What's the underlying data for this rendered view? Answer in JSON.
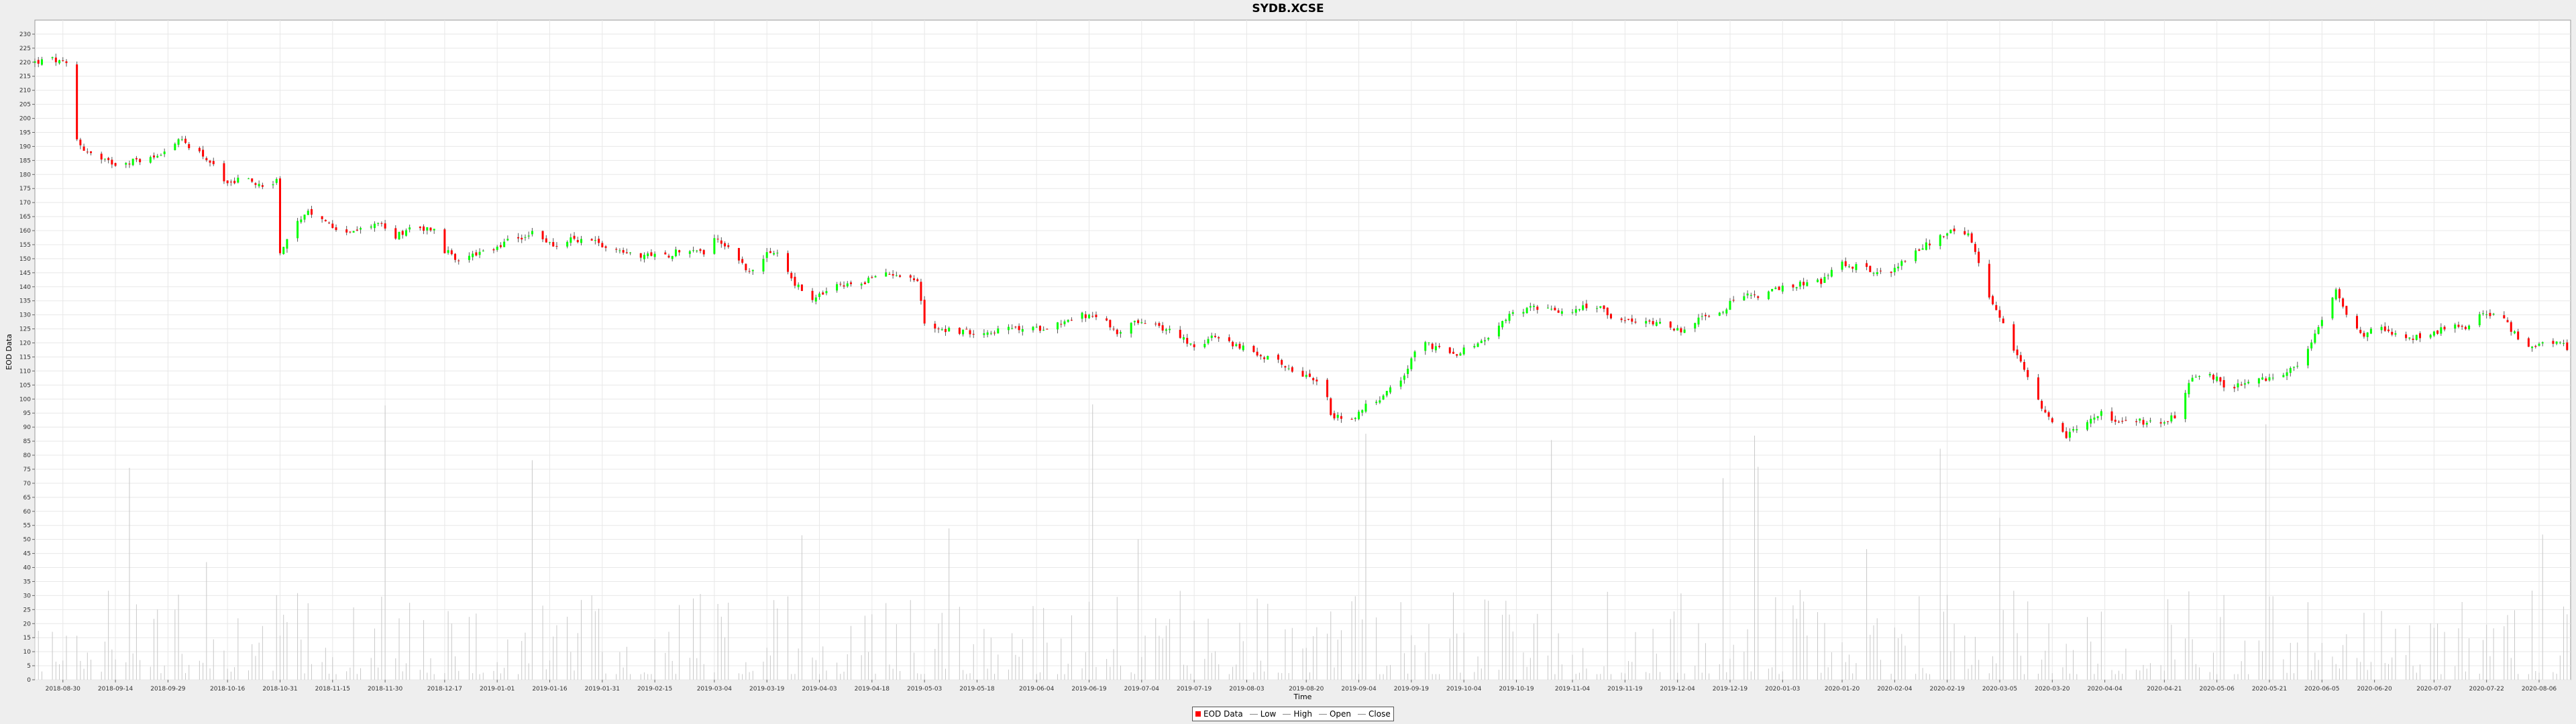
{
  "window": {
    "title": "SYDB.XCSE"
  },
  "colors": {
    "up": "#00ff00",
    "down": "#ff0000",
    "wick": "#555555",
    "volume": "#c8c8c8",
    "grid": "#e8e8e8",
    "plot_bg": "#ffffff"
  },
  "chart_data": {
    "type": "candlestick",
    "title": "SYDB.XCSE",
    "xlabel": "Time",
    "ylabel": "EOD Data",
    "ylim": [
      0,
      235
    ],
    "yticks": [
      0,
      5,
      10,
      15,
      20,
      25,
      30,
      35,
      40,
      45,
      50,
      55,
      60,
      65,
      70,
      75,
      80,
      85,
      90,
      95,
      100,
      105,
      110,
      115,
      120,
      125,
      130,
      135,
      140,
      145,
      150,
      155,
      160,
      165,
      170,
      175,
      180,
      185,
      190,
      195,
      200,
      205,
      210,
      215,
      220,
      225,
      230
    ],
    "xlim": [
      "2018-08-22",
      "2020-08-15"
    ],
    "xticks": [
      "2018-08-30",
      "2018-09-14",
      "2018-09-29",
      "2018-10-16",
      "2018-10-31",
      "2018-11-15",
      "2018-11-30",
      "2018-12-17",
      "2019-01-01",
      "2019-01-16",
      "2019-01-31",
      "2019-02-15",
      "2019-03-04",
      "2019-03-19",
      "2019-04-03",
      "2019-04-18",
      "2019-05-03",
      "2019-05-18",
      "2019-06-04",
      "2019-06-19",
      "2019-07-04",
      "2019-07-19",
      "2019-08-03",
      "2019-08-20",
      "2019-09-04",
      "2019-09-19",
      "2019-10-04",
      "2019-10-19",
      "2019-11-04",
      "2019-11-19",
      "2019-12-04",
      "2019-12-19",
      "2020-01-03",
      "2020-01-20",
      "2020-02-04",
      "2020-02-19",
      "2020-03-05",
      "2020-03-20",
      "2020-04-04",
      "2020-04-21",
      "2020-05-06",
      "2020-05-21",
      "2020-06-05",
      "2020-06-20",
      "2020-07-07",
      "2020-07-22",
      "2020-08-06"
    ],
    "legend_position": "bottom",
    "grid": true,
    "legend": [
      {
        "label": "EOD Data",
        "type": "swatch",
        "color": "#ff0000"
      },
      {
        "label": "Low",
        "type": "line"
      },
      {
        "label": "High",
        "type": "line"
      },
      {
        "label": "Open",
        "type": "line"
      },
      {
        "label": "Close",
        "type": "line"
      }
    ],
    "close_path": [
      [
        "2018-08-22",
        220
      ],
      [
        "2018-08-27",
        221
      ],
      [
        "2018-08-31",
        219
      ],
      [
        "2018-09-02",
        194
      ],
      [
        "2018-09-05",
        189
      ],
      [
        "2018-09-10",
        185
      ],
      [
        "2018-09-14",
        184
      ],
      [
        "2018-09-20",
        185
      ],
      [
        "2018-09-25",
        186
      ],
      [
        "2018-09-29",
        190
      ],
      [
        "2018-10-03",
        192
      ],
      [
        "2018-10-08",
        188
      ],
      [
        "2018-10-13",
        182
      ],
      [
        "2018-10-16",
        176
      ],
      [
        "2018-10-20",
        179
      ],
      [
        "2018-10-26",
        176
      ],
      [
        "2018-10-30",
        178
      ],
      [
        "2018-10-31",
        152
      ],
      [
        "2018-11-03",
        160
      ],
      [
        "2018-11-08",
        166
      ],
      [
        "2018-11-13",
        163
      ],
      [
        "2018-11-18",
        160
      ],
      [
        "2018-11-23",
        160
      ],
      [
        "2018-11-28",
        163
      ],
      [
        "2018-12-03",
        158
      ],
      [
        "2018-12-08",
        162
      ],
      [
        "2018-12-14",
        160
      ],
      [
        "2018-12-17",
        153
      ],
      [
        "2018-12-20",
        150
      ],
      [
        "2018-12-29",
        152
      ],
      [
        "2019-01-04",
        156
      ],
      [
        "2019-01-11",
        159
      ],
      [
        "2019-01-17",
        155
      ],
      [
        "2019-01-23",
        157
      ],
      [
        "2019-01-29",
        156
      ],
      [
        "2019-02-05",
        153
      ],
      [
        "2019-02-12",
        151
      ],
      [
        "2019-02-18",
        151
      ],
      [
        "2019-02-24",
        154
      ],
      [
        "2019-03-01",
        152
      ],
      [
        "2019-03-04",
        158
      ],
      [
        "2019-03-09",
        153
      ],
      [
        "2019-03-14",
        145
      ],
      [
        "2019-03-18",
        151
      ],
      [
        "2019-03-22",
        152
      ],
      [
        "2019-03-27",
        141
      ],
      [
        "2019-04-01",
        135
      ],
      [
        "2019-04-07",
        140
      ],
      [
        "2019-04-14",
        141
      ],
      [
        "2019-04-20",
        144
      ],
      [
        "2019-04-25",
        145
      ],
      [
        "2019-05-01",
        142
      ],
      [
        "2019-05-03",
        127
      ],
      [
        "2019-05-08",
        125
      ],
      [
        "2019-05-14",
        124
      ],
      [
        "2019-05-20",
        124
      ],
      [
        "2019-05-28",
        125
      ],
      [
        "2019-06-04",
        125
      ],
      [
        "2019-06-10",
        127
      ],
      [
        "2019-06-17",
        130
      ],
      [
        "2019-06-23",
        128
      ],
      [
        "2019-06-27",
        124
      ],
      [
        "2019-07-02",
        127
      ],
      [
        "2019-07-08",
        126
      ],
      [
        "2019-07-13",
        124
      ],
      [
        "2019-07-19",
        119
      ],
      [
        "2019-07-25",
        122
      ],
      [
        "2019-07-31",
        119
      ],
      [
        "2019-08-06",
        116
      ],
      [
        "2019-08-12",
        113
      ],
      [
        "2019-08-17",
        110
      ],
      [
        "2019-08-21",
        108
      ],
      [
        "2019-08-25",
        106
      ],
      [
        "2019-08-27",
        94
      ],
      [
        "2019-09-02",
        93
      ],
      [
        "2019-09-06",
        98
      ],
      [
        "2019-09-11",
        101
      ],
      [
        "2019-09-17",
        108
      ],
      [
        "2019-09-21",
        121
      ],
      [
        "2019-09-26",
        118
      ],
      [
        "2019-10-01",
        116
      ],
      [
        "2019-10-07",
        119
      ],
      [
        "2019-10-12",
        123
      ],
      [
        "2019-10-18",
        131
      ],
      [
        "2019-10-24",
        133
      ],
      [
        "2019-10-30",
        131
      ],
      [
        "2019-11-05",
        132
      ],
      [
        "2019-11-11",
        133
      ],
      [
        "2019-11-17",
        128
      ],
      [
        "2019-11-23",
        127
      ],
      [
        "2019-11-29",
        128
      ],
      [
        "2019-12-05",
        124
      ],
      [
        "2019-12-10",
        128
      ],
      [
        "2019-12-16",
        131
      ],
      [
        "2019-12-21",
        136
      ],
      [
        "2019-12-27",
        137
      ],
      [
        "2020-01-02",
        139
      ],
      [
        "2020-01-08",
        141
      ],
      [
        "2020-01-14",
        142
      ],
      [
        "2020-01-20",
        148
      ],
      [
        "2020-01-26",
        147
      ],
      [
        "2020-02-01",
        144
      ],
      [
        "2020-02-07",
        149
      ],
      [
        "2020-02-13",
        155
      ],
      [
        "2020-02-19",
        159
      ],
      [
        "2020-02-22",
        161
      ],
      [
        "2020-02-25",
        158
      ],
      [
        "2020-02-28",
        148
      ],
      [
        "2020-03-03",
        133
      ],
      [
        "2020-03-06",
        126
      ],
      [
        "2020-03-10",
        115
      ],
      [
        "2020-03-13",
        107
      ],
      [
        "2020-03-17",
        96
      ],
      [
        "2020-03-20",
        91
      ],
      [
        "2020-03-24",
        87
      ],
      [
        "2020-03-29",
        91
      ],
      [
        "2020-04-03",
        95
      ],
      [
        "2020-04-08",
        91
      ],
      [
        "2020-04-14",
        92
      ],
      [
        "2020-04-20",
        91
      ],
      [
        "2020-04-25",
        95
      ],
      [
        "2020-04-29",
        108
      ],
      [
        "2020-05-04",
        109
      ],
      [
        "2020-05-09",
        104
      ],
      [
        "2020-05-14",
        105
      ],
      [
        "2020-05-20",
        107
      ],
      [
        "2020-05-25",
        108
      ],
      [
        "2020-05-31",
        115
      ],
      [
        "2020-06-05",
        128
      ],
      [
        "2020-06-09",
        140
      ],
      [
        "2020-06-12",
        131
      ],
      [
        "2020-06-16",
        123
      ],
      [
        "2020-06-22",
        125
      ],
      [
        "2020-06-28",
        121
      ],
      [
        "2020-07-04",
        123
      ],
      [
        "2020-07-10",
        125
      ],
      [
        "2020-07-16",
        126
      ],
      [
        "2020-07-22",
        131
      ],
      [
        "2020-07-27",
        128
      ],
      [
        "2020-08-01",
        120
      ],
      [
        "2020-08-06",
        119
      ],
      [
        "2020-08-12",
        120
      ],
      [
        "2020-08-14",
        118
      ]
    ],
    "volume_range": [
      2,
      100
    ]
  }
}
